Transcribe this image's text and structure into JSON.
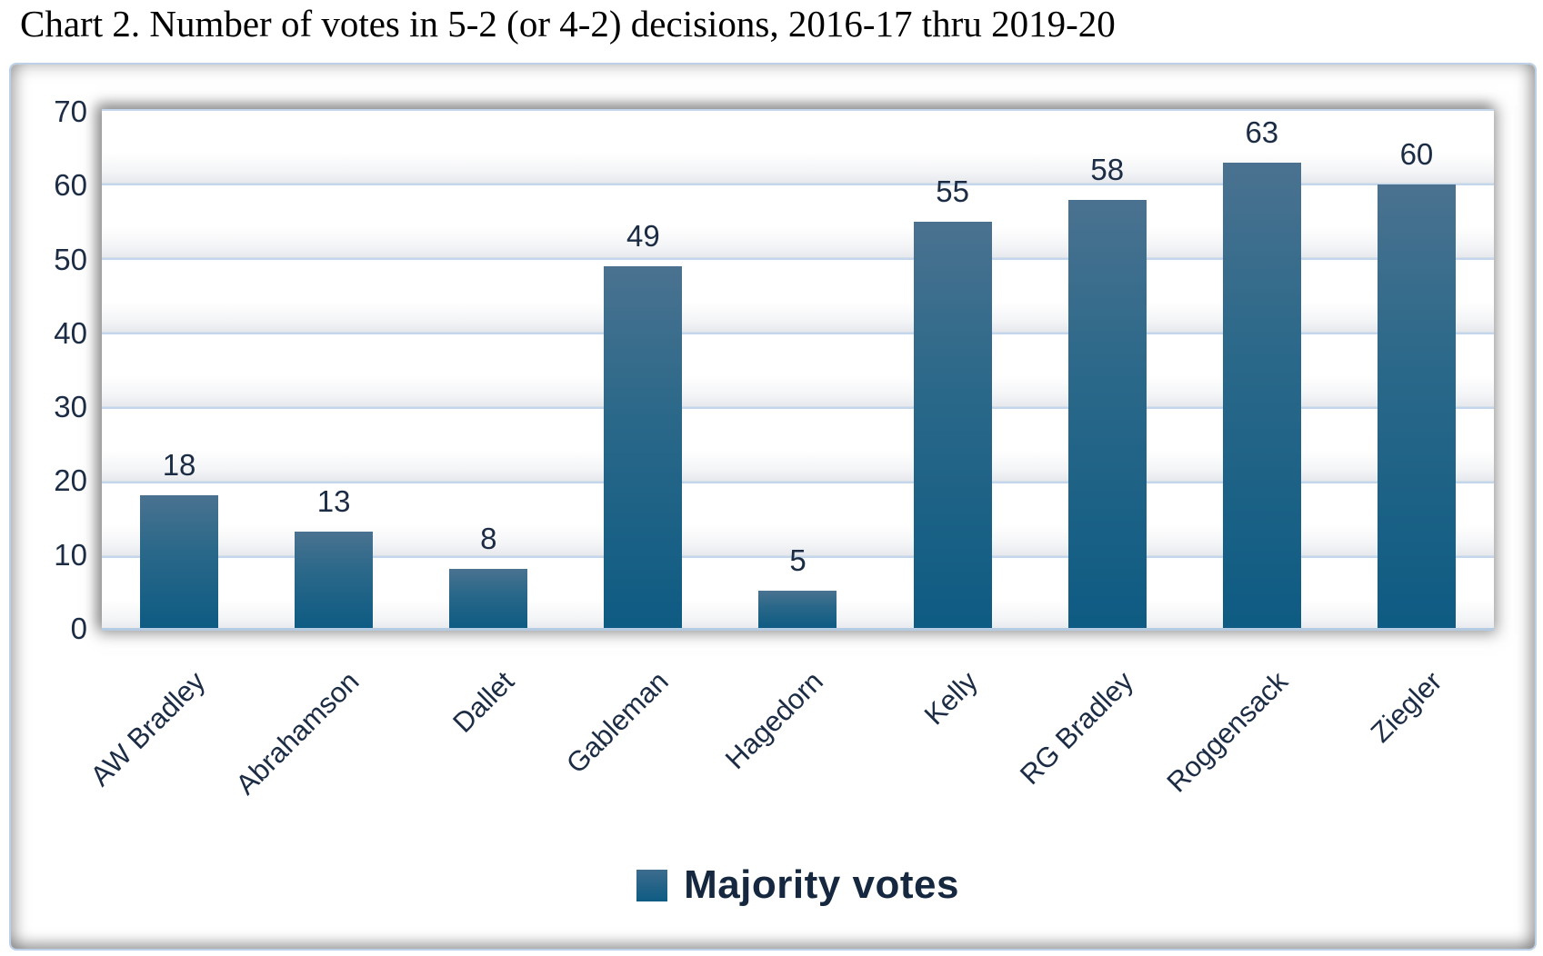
{
  "title": "Chart 2. Number of votes in 5-2 (or 4-2) decisions, 2016-17 thru 2019-20",
  "legend": {
    "label": "Majority votes"
  },
  "colors": {
    "bar_gradient_top": "#4a7290",
    "bar_gradient_mid": "#2a6889",
    "bar_gradient_bottom": "#0e5b83",
    "gridline": "#c3d6eb",
    "axis_line": "#b5cbe2",
    "label_text": "#1b2c44",
    "frame_border": "#bcd0e8",
    "title_text": "#000000"
  },
  "chart_data": {
    "type": "bar",
    "title": "Chart 2. Number of votes in 5-2 (or 4-2) decisions, 2016-17 thru 2019-20",
    "categories": [
      "AW Bradley",
      "Abrahamson",
      "Dallet",
      "Gableman",
      "Hagedorn",
      "Kelly",
      "RG Bradley",
      "Roggensack",
      "Ziegler"
    ],
    "series": [
      {
        "name": "Majority votes",
        "values": [
          18,
          13,
          8,
          49,
          5,
          55,
          58,
          63,
          60
        ]
      }
    ],
    "xlabel": "",
    "ylabel": "",
    "ylim": [
      0,
      70
    ],
    "ytick_step": 10,
    "yticks": [
      0,
      10,
      20,
      30,
      40,
      50,
      60,
      70
    ],
    "grid": true,
    "data_labels": true,
    "legend_position": "bottom",
    "x_label_rotation_deg": -45
  }
}
